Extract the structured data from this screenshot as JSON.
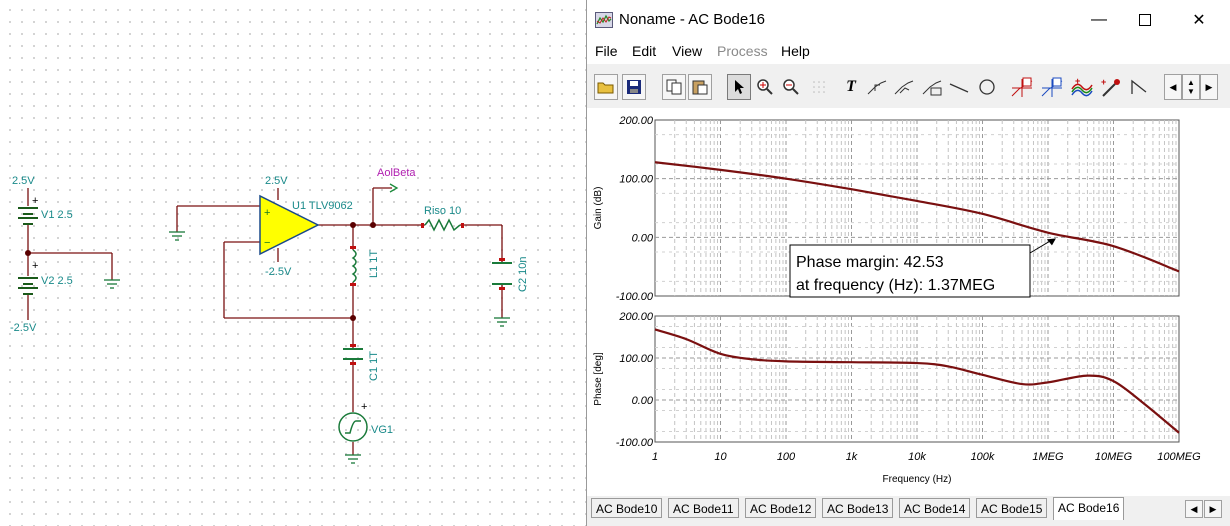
{
  "window": {
    "title": "Noname - AC Bode16",
    "controls": [
      "minimize",
      "maximize",
      "close"
    ]
  },
  "menu": {
    "file": "File",
    "edit": "Edit",
    "view": "View",
    "process": "Process",
    "help": "Help"
  },
  "toolbar": {
    "icons": [
      "open-folder-icon",
      "save-icon",
      "copy-icon",
      "paste-icon",
      "select-pointer-icon",
      "zoom-in-icon",
      "zoom-100-icon",
      "grid-icon",
      "text-tool-icon",
      "line-marker-a-icon",
      "line-marker-b-icon",
      "text-marker-icon",
      "line-tool-icon",
      "circle-tool-icon",
      "cursor-a-icon",
      "cursor-b-icon",
      "add-curve-icon",
      "curve-color-icon",
      "step-icon",
      "scroll-left-icon",
      "scroll-updown-icon",
      "scroll-right-icon"
    ],
    "text_tool_glyph": "T"
  },
  "schematic": {
    "v_top": "2.5V",
    "v1": "V1 2.5",
    "v2": "V2 2.5",
    "v_bottom": "-2.5V",
    "opamp_supply_pos": "2.5V",
    "opamp_supply_neg": "-2.5V",
    "opamp": "U1 TLV9062",
    "probe": "AolBeta",
    "riso": "Riso 10",
    "c2": "C2 10n",
    "l1": "L1 1T",
    "c1": "C1 1T",
    "vg1": "VG1",
    "plus": "+",
    "minus": "−"
  },
  "annotation": {
    "line1": "Phase margin: 42.53",
    "line2": " at frequency (Hz): 1.37MEG"
  },
  "chart_data": [
    {
      "type": "line",
      "ylabel": "Gain (dB)",
      "ylim": [
        -100,
        200
      ],
      "yticks": [
        "200.00",
        "100.00",
        "0.00",
        "-100.00"
      ],
      "xscale": "log",
      "xlim": [
        1,
        100000000
      ],
      "grid": true,
      "series": [
        {
          "color": "#7a1010",
          "x": [
            1,
            10,
            100,
            1000,
            10000,
            100000,
            1000000,
            10000000,
            100000000
          ],
          "y": [
            128,
            115,
            100,
            82,
            62,
            40,
            8,
            -15,
            -58
          ]
        }
      ]
    },
    {
      "type": "line",
      "ylabel": "Phase [deg]",
      "xlabel": "Frequency (Hz)",
      "ylim": [
        -100,
        200
      ],
      "yticks": [
        "200.00",
        "100.00",
        "0.00",
        "-100.00"
      ],
      "xscale": "log",
      "xlim": [
        1,
        100000000
      ],
      "xticks": [
        "1",
        "10",
        "100",
        "1k",
        "10k",
        "100k",
        "1MEG",
        "10MEG",
        "100MEG"
      ],
      "grid": true,
      "series": [
        {
          "color": "#7a1010",
          "x": [
            1,
            3,
            10,
            30,
            100,
            1000,
            10000,
            30000,
            100000,
            400000,
            1000000,
            4000000,
            10000000,
            30000000,
            100000000
          ],
          "y": [
            168,
            145,
            110,
            97,
            92,
            90,
            88,
            80,
            60,
            38,
            42,
            58,
            45,
            -10,
            -78
          ]
        }
      ]
    }
  ],
  "tabs": [
    "AC Bode10",
    "AC Bode11",
    "AC Bode12",
    "AC Bode13",
    "AC Bode14",
    "AC Bode15",
    "AC Bode16"
  ],
  "active_tab": "AC Bode16"
}
